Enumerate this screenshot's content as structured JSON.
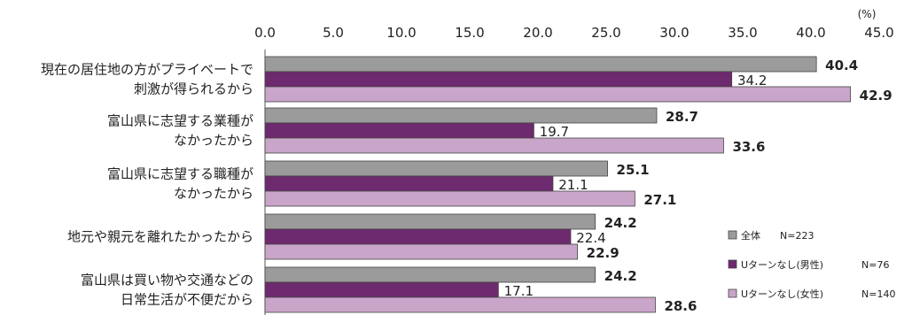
{
  "chart_data": {
    "type": "bar",
    "orientation": "horizontal",
    "unit": "(%)",
    "xlim": [
      0,
      45
    ],
    "ticks": [
      "0.0",
      "5.0",
      "10.0",
      "15.0",
      "20.0",
      "25.0",
      "30.0",
      "35.0",
      "40.0",
      "45.0"
    ],
    "categories": [
      [
        "現在の居住地の方がプライベートで",
        "刺激が得られるから"
      ],
      [
        "富山県に志望する業種が",
        "なかったから"
      ],
      [
        "富山県に志望する職種が",
        "なかったから"
      ],
      [
        "地元や親元を離れたかったから"
      ],
      [
        "富山県は買い物や交通などの",
        "日常生活が不便だから"
      ]
    ],
    "series": [
      {
        "name": "全体",
        "n": "N=223",
        "color": "#9b9b9b",
        "values": [
          40.4,
          28.7,
          25.1,
          24.2,
          24.2
        ]
      },
      {
        "name": "Uターンなし(男性)",
        "n": "N=76",
        "color": "#6e2a6e",
        "values": [
          34.2,
          19.7,
          21.1,
          22.4,
          17.1
        ]
      },
      {
        "name": "Uターンなし(女性)",
        "n": "N=140",
        "color": "#c9a5c9",
        "values": [
          42.9,
          33.6,
          27.1,
          22.9,
          28.6
        ]
      }
    ],
    "legend_position": "bottom-right",
    "grid": false
  }
}
